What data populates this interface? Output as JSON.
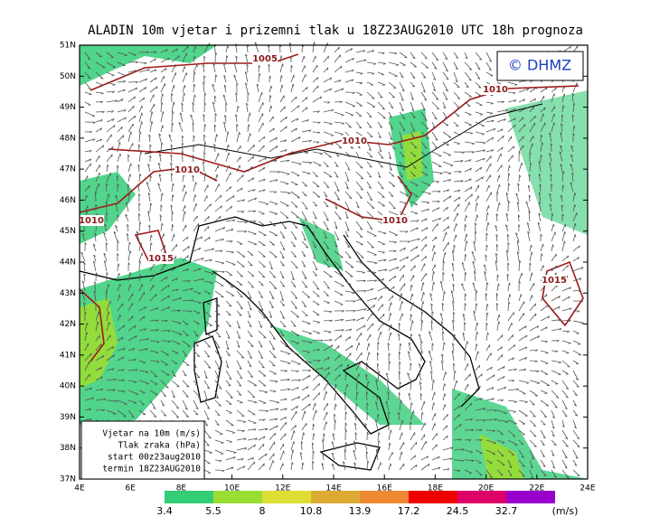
{
  "title": "ALADIN  10m vjetar i prizemni tlak u 18Z23AUG2010 UTC 18h prognoza",
  "logo": "© DHMZ",
  "lat_labels": [
    "51N",
    "50N",
    "49N",
    "48N",
    "47N",
    "46N",
    "45N",
    "44N",
    "43N",
    "42N",
    "41N",
    "40N",
    "39N",
    "38N",
    "37N"
  ],
  "lon_labels": [
    "4E",
    "6E",
    "8E",
    "10E",
    "12E",
    "14E",
    "16E",
    "18E",
    "20E",
    "22E",
    "24E"
  ],
  "isobar_labels": [
    "1005",
    "1010",
    "1010",
    "1010",
    "1010",
    "1010",
    "1015",
    "1015"
  ],
  "legend_lines": [
    "Vjetar na 10m (m/s)",
    "Tlak zraka (hPa)",
    "start 00z23aug2010",
    "termin 18Z23AUG2010"
  ],
  "colorbar": {
    "levels": [
      3.4,
      5.5,
      8,
      10.8,
      13.9,
      17.2,
      24.5,
      32.7
    ],
    "unit": "(m/s)",
    "colors": [
      "#33cc77",
      "#99dd33",
      "#dddd33",
      "#ddaa33",
      "#ee8833",
      "#ee0000",
      "#dd0066",
      "#9900cc"
    ]
  }
}
